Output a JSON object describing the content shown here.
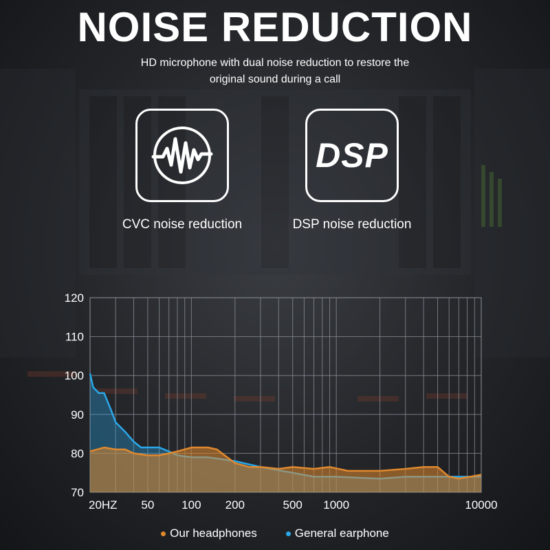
{
  "header": {
    "title": "NOISE REDUCTION",
    "subtitle_line1": "HD microphone with dual noise reduction to restore the",
    "subtitle_line2": "original sound during a call"
  },
  "features": [
    {
      "icon": "waveform-circle-icon",
      "label": "CVC noise reduction"
    },
    {
      "icon": "dsp-icon",
      "icon_text": "DSP",
      "label": "DSP noise reduction"
    }
  ],
  "colors": {
    "our_headphones": "#e0892e",
    "general_earphone": "#2aa7e8",
    "grid": "#8e949b"
  },
  "chart_data": {
    "type": "area",
    "x_scale": "log",
    "xlim": [
      20,
      10000
    ],
    "ylim": [
      70,
      120
    ],
    "yticks": [
      70,
      80,
      90,
      100,
      110,
      120
    ],
    "xticks": [
      {
        "value": 20,
        "label": "20HZ"
      },
      {
        "value": 50,
        "label": "50"
      },
      {
        "value": 100,
        "label": "100"
      },
      {
        "value": 200,
        "label": "200"
      },
      {
        "value": 500,
        "label": "500"
      },
      {
        "value": 1000,
        "label": "1000"
      },
      {
        "value": 10000,
        "label": "10000"
      }
    ],
    "grid": true,
    "legend_position": "bottom",
    "series": [
      {
        "name": "Our headphones",
        "color": "#e0892e",
        "x": [
          20,
          25,
          30,
          35,
          40,
          50,
          60,
          70,
          80,
          100,
          130,
          150,
          200,
          250,
          300,
          400,
          500,
          700,
          900,
          1200,
          1600,
          2000,
          3000,
          4000,
          5000,
          6000,
          7000,
          10000
        ],
        "y": [
          80.5,
          81.5,
          81,
          81,
          80,
          79.5,
          79.5,
          80,
          80.5,
          81.5,
          81.5,
          81,
          77.5,
          76.5,
          76.5,
          76,
          76.5,
          76,
          76.5,
          75.5,
          75.5,
          75.5,
          76,
          76.5,
          76.5,
          74,
          73.5,
          74.5
        ]
      },
      {
        "name": "General earphone",
        "color": "#2aa7e8",
        "x": [
          20,
          21,
          23,
          25,
          28,
          30,
          35,
          40,
          45,
          50,
          60,
          70,
          80,
          100,
          130,
          200,
          300,
          500,
          700,
          1000,
          2000,
          3000,
          5000,
          10000
        ],
        "y": [
          100.5,
          97,
          95.5,
          95.5,
          91,
          88,
          85.5,
          83,
          81.5,
          81.5,
          81.5,
          80.5,
          79.5,
          79,
          79,
          78,
          76.5,
          75,
          74,
          74,
          73.5,
          74,
          74,
          74
        ]
      }
    ]
  }
}
